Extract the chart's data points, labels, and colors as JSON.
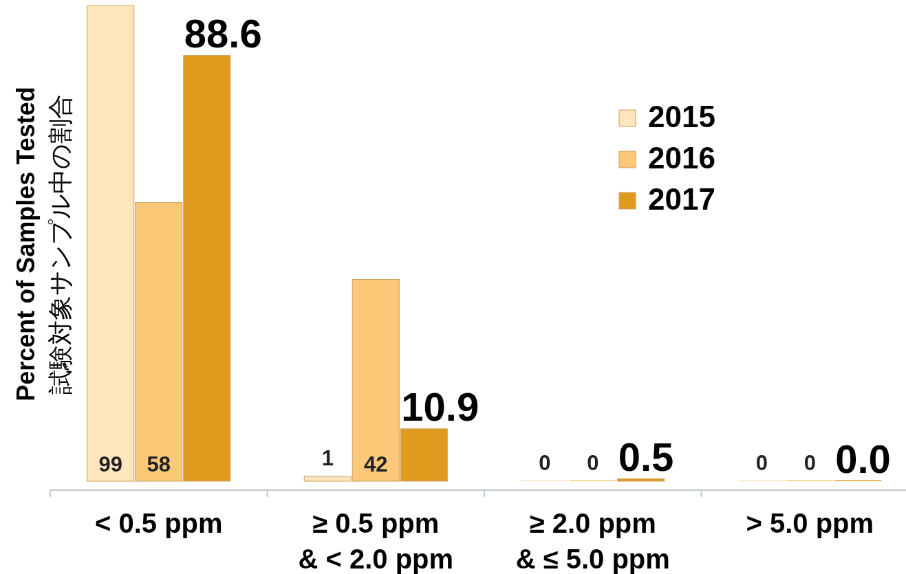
{
  "chart_data": {
    "type": "bar",
    "ylabel": "Percent of Samples Tested\n試験対象サンプル中の割合",
    "categories": [
      "< 0.5 ppm",
      "≥ 0.5 ppm\n& < 2.0 ppm",
      "≥ 2.0 ppm\n& ≤ 5.0 ppm",
      "> 5.0 ppm"
    ],
    "series": [
      {
        "name": "2015",
        "color": "#fde6bb",
        "values": [
          99,
          1,
          0,
          0
        ],
        "value_labels": [
          "99",
          "1",
          "0",
          "0"
        ]
      },
      {
        "name": "2016",
        "color": "#fbc877",
        "values": [
          58,
          42,
          0,
          0
        ],
        "value_labels": [
          "58",
          "42",
          "0",
          "0"
        ]
      },
      {
        "name": "2017",
        "color": "#e09a1d",
        "values": [
          88.6,
          10.9,
          0.5,
          0.0
        ],
        "value_labels": [
          "88.6",
          "10.9",
          "0.5",
          "0.0"
        ]
      }
    ],
    "legend": "right"
  }
}
